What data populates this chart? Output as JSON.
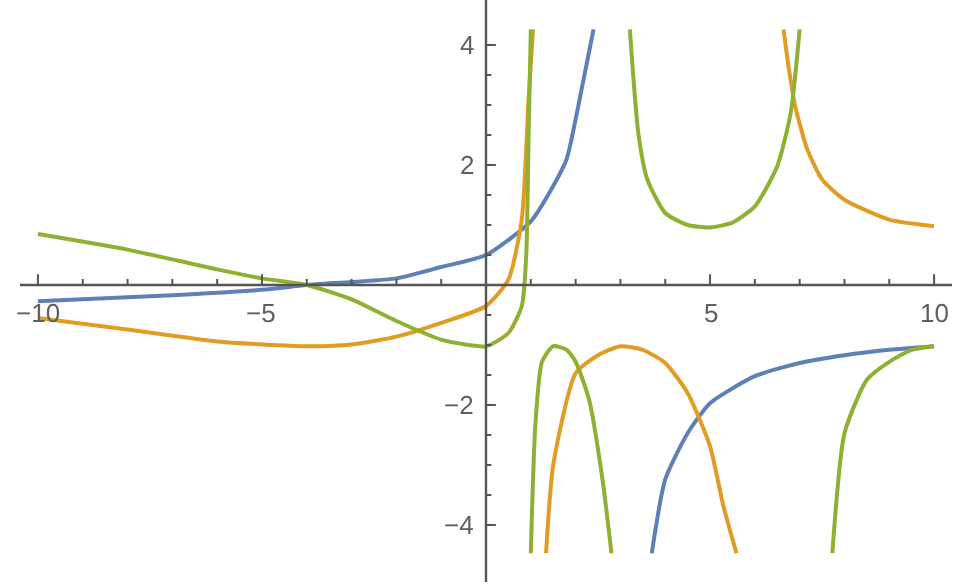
{
  "chart_data": {
    "type": "line",
    "xlim": [
      -10.4,
      10.4
    ],
    "ylim": [
      -4.95,
      4.75
    ],
    "xticks": [
      -10,
      {
        "value": -9,
        "label": null
      },
      {
        "value": -8,
        "label": null
      },
      {
        "value": -7,
        "label": null
      },
      {
        "value": -6,
        "label": null
      },
      -5,
      {
        "value": -4,
        "label": null
      },
      {
        "value": -3,
        "label": null
      },
      {
        "value": -2,
        "label": null
      },
      {
        "value": -1,
        "label": null
      },
      {
        "value": 1,
        "label": null
      },
      {
        "value": 2,
        "label": null
      },
      {
        "value": 3,
        "label": null
      },
      {
        "value": 4,
        "label": null
      },
      5,
      {
        "value": 6,
        "label": null
      },
      {
        "value": 7,
        "label": null
      },
      {
        "value": 8,
        "label": null
      },
      {
        "value": 9,
        "label": null
      },
      10
    ],
    "yticks": [
      -4,
      {
        "value": -3.5,
        "label": null
      },
      {
        "value": -3,
        "label": null
      },
      {
        "value": -2.5,
        "label": null
      },
      -2,
      {
        "value": -1.5,
        "label": null
      },
      {
        "value": -1,
        "label": null
      },
      {
        "value": -0.5,
        "label": null
      },
      {
        "value": 0.5,
        "label": null
      },
      {
        "value": 1,
        "label": null
      },
      {
        "value": 1.5,
        "label": null
      },
      2,
      {
        "value": 2.5,
        "label": null
      },
      {
        "value": 3,
        "label": null
      },
      {
        "value": 3.5,
        "label": null
      },
      4
    ],
    "marker": "none",
    "line_style": "solid",
    "series": [
      {
        "color": "#5e81b5",
        "x": [
          -10,
          -7,
          -5,
          -4,
          -3,
          -2,
          -1,
          0,
          1,
          1.5,
          1.8,
          2,
          2.4,
          null,
          3.7,
          4,
          4.5,
          5,
          6,
          7,
          8,
          9,
          10
        ],
        "values": [
          -0.27,
          -0.17,
          -0.08,
          0,
          0.05,
          0.11,
          0.3,
          0.5,
          1.06,
          1.65,
          2.1,
          2.76,
          4.26,
          null,
          -4.47,
          -3.24,
          -2.47,
          -1.97,
          -1.52,
          -1.3,
          -1.17,
          -1.08,
          -1.02
        ]
      },
      {
        "color": "#e19c24",
        "x": [
          -10,
          -8,
          -6,
          -4,
          -3,
          -2,
          -1,
          0,
          0.5,
          0.8,
          0.95,
          1.05,
          null,
          1.34,
          1.5,
          2,
          2.5,
          3,
          3.5,
          4,
          4.5,
          5,
          5.3,
          5.59,
          null,
          6.64,
          6.75,
          6.9,
          7.17,
          7.5,
          8,
          9,
          10
        ],
        "values": [
          -0.55,
          -0.74,
          -0.94,
          -1.02,
          -0.99,
          -0.86,
          -0.63,
          -0.35,
          0.09,
          1.1,
          3.1,
          4.26,
          null,
          -4.47,
          -3.0,
          -1.47,
          -1.17,
          -1.02,
          -1.08,
          -1.3,
          -1.8,
          -2.69,
          -3.69,
          -4.47,
          null,
          4.26,
          3.65,
          2.98,
          2.26,
          1.76,
          1.42,
          1.09,
          0.98
        ]
      },
      {
        "color": "#8fb032",
        "x": [
          -10,
          -8,
          -6,
          -5,
          -4,
          -3,
          -2,
          -1,
          0,
          0.5,
          0.8,
          0.9,
          0.95,
          1.0,
          null,
          1.0,
          1.1,
          1.25,
          1.5,
          1.8,
          2,
          2.3,
          2.6,
          2.8,
          null,
          3.21,
          3.4,
          3.6,
          4,
          4.5,
          5,
          5.5,
          6,
          6.5,
          6.8,
          7.0,
          null,
          7.73,
          8,
          8.5,
          9,
          9.5,
          10
        ],
        "values": [
          0.85,
          0.59,
          0.26,
          0.11,
          0,
          -0.24,
          -0.6,
          -0.91,
          -1.02,
          -0.8,
          -0.35,
          0.53,
          2.46,
          4.26,
          null,
          -4.47,
          -2.35,
          -1.28,
          -1.02,
          -1.08,
          -1.28,
          -1.91,
          -3.24,
          -4.47,
          null,
          4.26,
          2.53,
          1.76,
          1.2,
          1.0,
          0.96,
          1.04,
          1.31,
          1.98,
          2.87,
          4.26,
          null,
          -4.47,
          -2.47,
          -1.58,
          -1.28,
          -1.08,
          -1.02
        ]
      }
    ]
  }
}
